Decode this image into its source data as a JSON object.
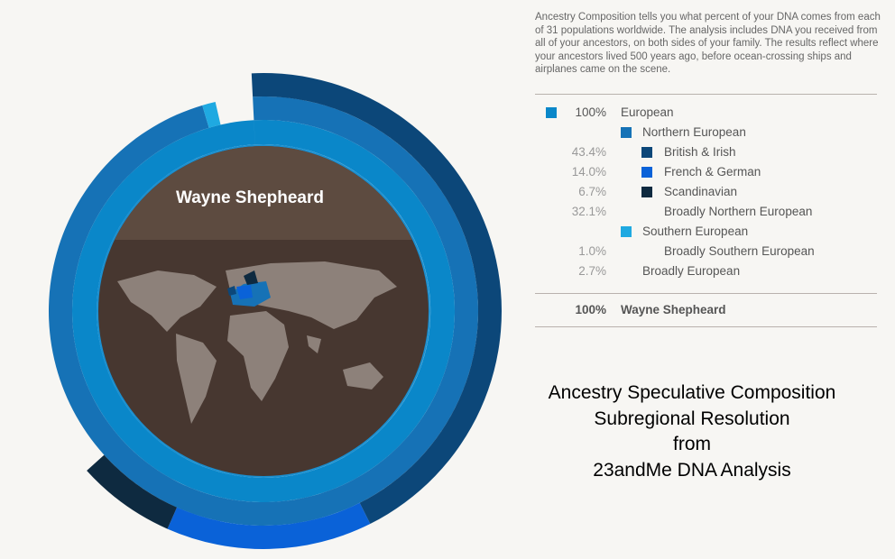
{
  "chart_data": {
    "type": "sunburst",
    "title": "Wayne Shepheard",
    "description": "Ancestry Composition tells you what percent of your DNA comes from each of 31 populations worldwide. The analysis includes DNA you received from all of your ancestors, on both sides of your family. The results reflect where your ancestors lived 500 years ago, before ocean-crossing ships and airplanes came on the scene.",
    "series": [
      {
        "name": "European",
        "color": "#0a87c9",
        "level": 0,
        "value": 100,
        "value_label": "100%"
      },
      {
        "name": "Northern European",
        "color": "#1672b6",
        "level": 1,
        "value": 96.2
      },
      {
        "name": "British & Irish",
        "color": "#0c4779",
        "level": 2,
        "value": 43.4,
        "value_label": "43.4%"
      },
      {
        "name": "French & German",
        "color": "#0a62d8",
        "level": 2,
        "value": 14.0,
        "value_label": "14.0%"
      },
      {
        "name": "Scandinavian",
        "color": "#0e2a40",
        "level": 2,
        "value": 6.7,
        "value_label": "6.7%"
      },
      {
        "name": "Broadly Northern European",
        "level": 2,
        "value": 32.1,
        "value_label": "32.1%"
      },
      {
        "name": "Southern European",
        "color": "#1fa9e1",
        "level": 1,
        "value": 1.0
      },
      {
        "name": "Broadly Southern European",
        "level": 2,
        "value": 1.0,
        "value_label": "1.0%"
      },
      {
        "name": "Broadly European",
        "level": 1,
        "value": 2.7,
        "value_label": "2.7%"
      }
    ],
    "total": {
      "name": "Wayne Shepheard",
      "value": 100,
      "value_label": "100%"
    },
    "caption": [
      "Ancestry Speculative Composition",
      "Subregional Resolution",
      "from",
      "23andMe DNA Analysis"
    ]
  }
}
